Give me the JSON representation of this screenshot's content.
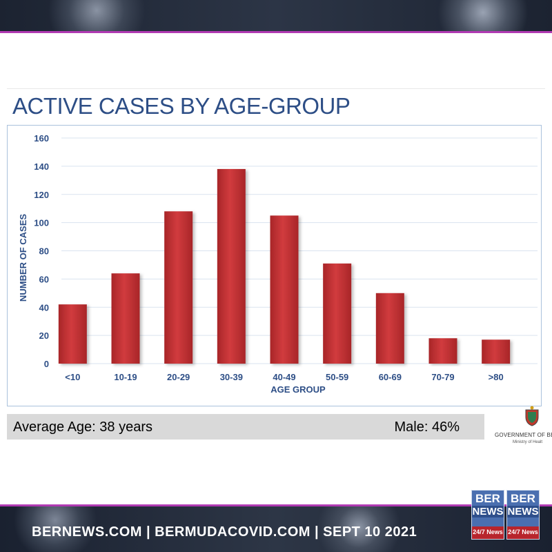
{
  "slide": {
    "title": "ACTIVE CASES BY AGE-GROUP",
    "average_age": "Average Age: 38 years",
    "male_pct": "Male: 46%",
    "gov_label": "GOVERNMENT OF BE",
    "ministry_label": "Ministry of Healt"
  },
  "footer": {
    "text": "BERNEWS.COM | BERMUDACOVID.COM | SEPT 10 2021",
    "logo_top": "BER",
    "logo_middle": "NEWS",
    "logo_bottom": "24/7 News"
  },
  "colors": {
    "bar": "#c83538",
    "axis_text": "#2d4e86",
    "grid": "#d9e3ef",
    "accent": "#b13ab3"
  },
  "chart_data": {
    "type": "bar",
    "title": "ACTIVE CASES BY AGE-GROUP",
    "xlabel": "AGE GROUP",
    "ylabel": "NUMBER OF CASES",
    "categories": [
      "<10",
      "10-19",
      "20-29",
      "30-39",
      "40-49",
      "50-59",
      "60-69",
      "70-79",
      ">80"
    ],
    "values": [
      42,
      64,
      108,
      138,
      105,
      71,
      50,
      18,
      17
    ],
    "ylim": [
      0,
      160
    ],
    "yticks": [
      "0",
      "20",
      "40",
      "60",
      "80",
      "100",
      "120",
      "140",
      "160"
    ],
    "grid": true,
    "legend": "none"
  }
}
